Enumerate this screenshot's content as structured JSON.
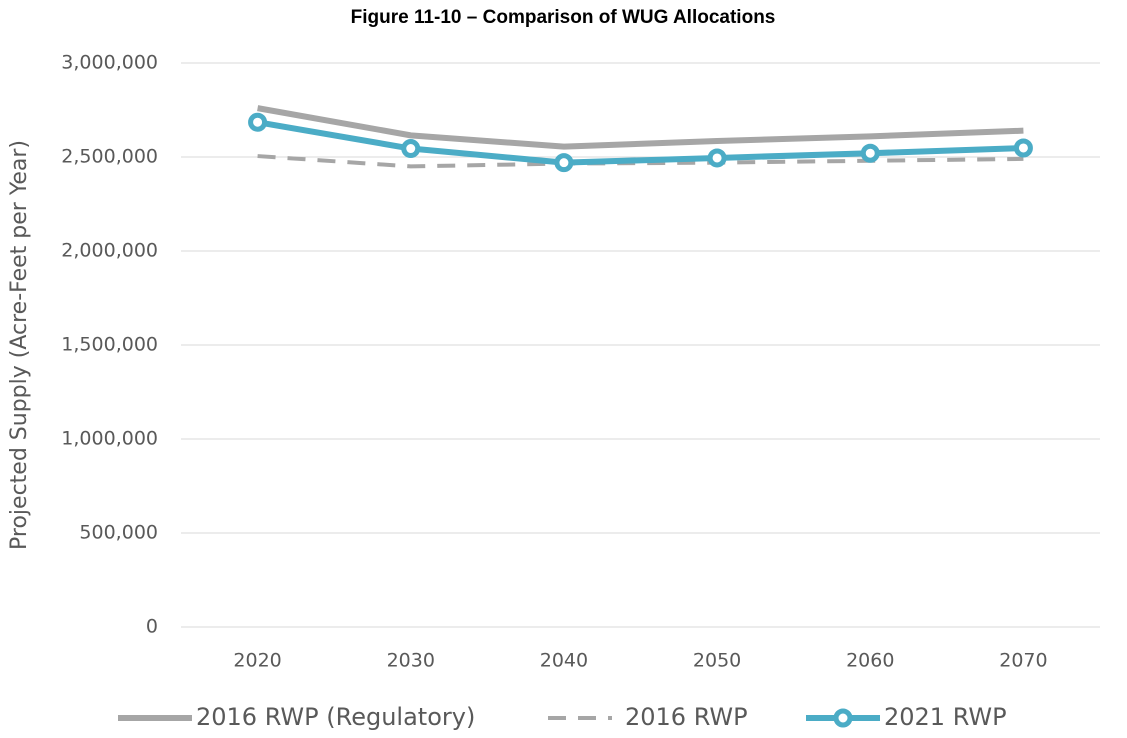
{
  "chart_data": {
    "type": "line",
    "title": "Figure 11-10 – Comparison of WUG Allocations",
    "y_label": "Projected Supply (Acre-Feet per Year)",
    "categories": [
      "2020",
      "2030",
      "2040",
      "2050",
      "2060",
      "2070"
    ],
    "series": [
      {
        "name": "2016 RWP (Regulatory)",
        "color": "#a6a6a6",
        "dashed": false,
        "marker": false,
        "values": [
          2760000,
          2615000,
          2555000,
          2585000,
          2610000,
          2640000
        ]
      },
      {
        "name": "2016 RWP",
        "color": "#a6a6a6",
        "dashed": true,
        "marker": false,
        "values": [
          2505000,
          2450000,
          2465000,
          2470000,
          2480000,
          2490000
        ]
      },
      {
        "name": "2021 RWP",
        "color": "#4bacc6",
        "dashed": false,
        "marker": true,
        "values": [
          2685000,
          2545000,
          2470000,
          2495000,
          2520000,
          2548000
        ]
      }
    ],
    "ylim": [
      0,
      3000000
    ],
    "yticks": [
      0,
      {
        "value": 500000,
        "label": "500,000"
      },
      {
        "value": 1000000,
        "label": "1,000,000"
      },
      {
        "value": 1500000,
        "label": "1,500,000"
      },
      {
        "value": 2000000,
        "label": "2,000,000"
      },
      {
        "value": 2500000,
        "label": "2,500,000"
      },
      {
        "value": 3000000,
        "label": "3,000,000"
      }
    ],
    "grid": true,
    "legend": "bottom"
  }
}
